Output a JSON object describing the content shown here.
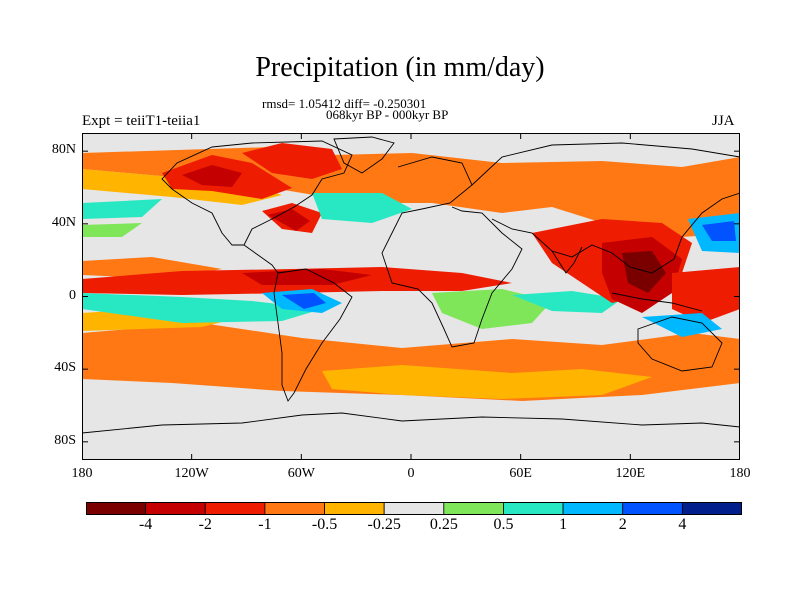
{
  "header": {
    "title": "Precipitation (in mm/day)",
    "stats": "rmsd= 1.05412 diff= -0.250301",
    "period": "068kyr BP - 000kyr BP",
    "experiment": "Expt = teiiT1-teiia1",
    "season": "JJA"
  },
  "map": {
    "projection": "cylindrical-equidistant",
    "lon_range": [
      -180,
      180
    ],
    "lat_range": [
      -90,
      90
    ],
    "y_ticks": [
      {
        "lat": 80,
        "label": "80N"
      },
      {
        "lat": 40,
        "label": "40N"
      },
      {
        "lat": 0,
        "label": "0"
      },
      {
        "lat": -40,
        "label": "40S"
      },
      {
        "lat": -80,
        "label": "80S"
      }
    ],
    "x_ticks": [
      {
        "lon": -180,
        "label": "180"
      },
      {
        "lon": -120,
        "label": "120W"
      },
      {
        "lon": -60,
        "label": "60W"
      },
      {
        "lon": 0,
        "label": "0"
      },
      {
        "lon": 60,
        "label": "60E"
      },
      {
        "lon": 120,
        "label": "120E"
      },
      {
        "lon": 180,
        "label": "180"
      }
    ],
    "background_color": "#e6e6e6",
    "coastline_color": "#000000"
  },
  "colorbar": {
    "colors": [
      "#7a0000",
      "#c40000",
      "#ee1c00",
      "#ff7814",
      "#ffb500",
      "#e6e6e6",
      "#7fe65a",
      "#28e8c4",
      "#00b8ff",
      "#0053ff",
      "#001e8c"
    ],
    "labels": [
      "-4",
      "-2",
      "-1",
      "-0.5",
      "-0.25",
      "0.25",
      "0.5",
      "1",
      "2",
      "4"
    ]
  }
}
